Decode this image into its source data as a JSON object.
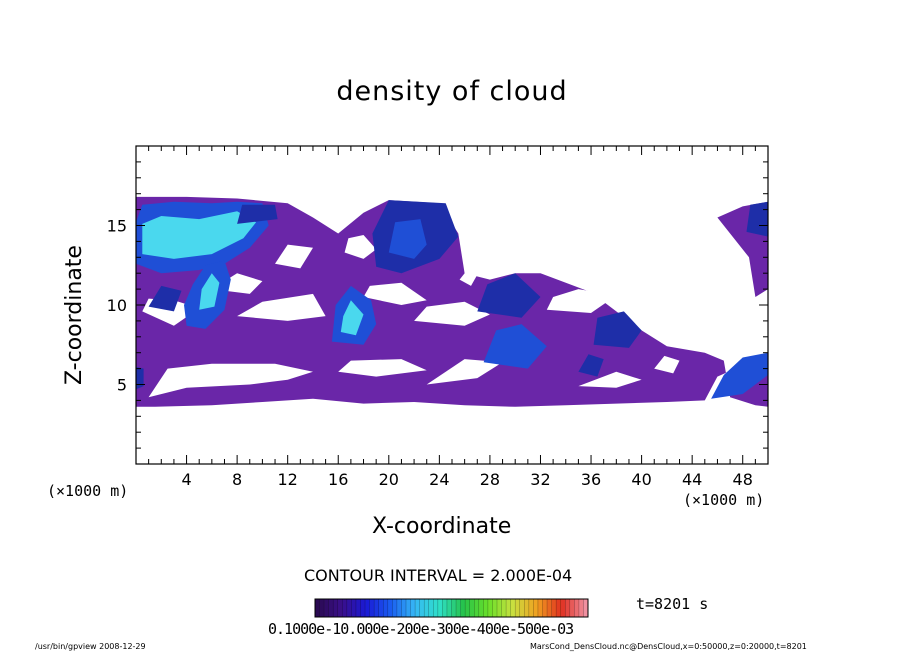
{
  "chart_data": {
    "type": "heatmap",
    "title": "density of cloud",
    "xlabel": "X-coordinate",
    "ylabel": "Z-coordinate",
    "x_unit_left": "(×1000 m)",
    "x_unit_right": "(×1000 m)",
    "xlim": [
      0,
      50
    ],
    "ylim": [
      0,
      20
    ],
    "x_ticks": [
      4,
      8,
      12,
      16,
      20,
      24,
      28,
      32,
      36,
      40,
      44,
      48
    ],
    "y_ticks": [
      5,
      10,
      15
    ],
    "cloud_regions": [
      {
        "level": 1,
        "polygon": [
          [
            0,
            3.6
          ],
          [
            1.5,
            3.6
          ],
          [
            6,
            3.7
          ],
          [
            10,
            3.9
          ],
          [
            14,
            4.1
          ],
          [
            18,
            3.8
          ],
          [
            22,
            3.9
          ],
          [
            26,
            3.7
          ],
          [
            30,
            3.6
          ],
          [
            34,
            3.7
          ],
          [
            38,
            3.8
          ],
          [
            42,
            3.9
          ],
          [
            45,
            4.0
          ],
          [
            46,
            5.5
          ],
          [
            48,
            6.2
          ],
          [
            50,
            6.6
          ],
          [
            50,
            3.6
          ],
          [
            49,
            3.7
          ],
          [
            47,
            4.2
          ],
          [
            46.5,
            6.5
          ],
          [
            45,
            7.0
          ],
          [
            42,
            7.4
          ],
          [
            40,
            8.4
          ],
          [
            38,
            9.6
          ],
          [
            36,
            10.8
          ],
          [
            34,
            11.4
          ],
          [
            32,
            12.0
          ],
          [
            30,
            12.0
          ],
          [
            28,
            11.6
          ],
          [
            26,
            12.0
          ],
          [
            25.5,
            14.5
          ],
          [
            24,
            16.4
          ],
          [
            20,
            16.6
          ],
          [
            18,
            15.8
          ],
          [
            16,
            14.5
          ],
          [
            14,
            15.5
          ],
          [
            12,
            16.4
          ],
          [
            8,
            16.7
          ],
          [
            4,
            16.8
          ],
          [
            0,
            16.8
          ]
        ]
      },
      {
        "level": 1,
        "polygon": [
          [
            46,
            15.5
          ],
          [
            48,
            16.2
          ],
          [
            50,
            16.5
          ],
          [
            50,
            11
          ],
          [
            49,
            10.5
          ],
          [
            48.5,
            13
          ],
          [
            47,
            14.5
          ]
        ]
      }
    ],
    "holes": [
      [
        [
          1,
          4.2
        ],
        [
          4,
          4.8
        ],
        [
          9,
          5.0
        ],
        [
          12,
          5.3
        ],
        [
          14,
          5.8
        ],
        [
          11,
          6.3
        ],
        [
          6,
          6.3
        ],
        [
          2.5,
          6.0
        ]
      ],
      [
        [
          16,
          5.8
        ],
        [
          19,
          5.5
        ],
        [
          23,
          5.9
        ],
        [
          21,
          6.6
        ],
        [
          17,
          6.5
        ]
      ],
      [
        [
          23,
          5.0
        ],
        [
          27,
          5.4
        ],
        [
          29,
          6.4
        ],
        [
          26,
          6.6
        ]
      ],
      [
        [
          35,
          4.9
        ],
        [
          38,
          4.8
        ],
        [
          40,
          5.3
        ],
        [
          38,
          5.8
        ]
      ],
      [
        [
          0.5,
          9.6
        ],
        [
          3,
          8.7
        ],
        [
          5,
          9.8
        ],
        [
          3,
          10.3
        ],
        [
          1,
          10.4
        ]
      ],
      [
        [
          8,
          9.3
        ],
        [
          12,
          9.0
        ],
        [
          15,
          9.3
        ],
        [
          14,
          10.7
        ],
        [
          10,
          10.2
        ]
      ],
      [
        [
          6,
          11.0
        ],
        [
          9,
          10.7
        ],
        [
          10,
          11.5
        ],
        [
          8,
          12.0
        ]
      ],
      [
        [
          11,
          12.6
        ],
        [
          13,
          12.3
        ],
        [
          14,
          13.6
        ],
        [
          12,
          13.8
        ]
      ],
      [
        [
          18,
          10.5
        ],
        [
          21,
          10.0
        ],
        [
          23,
          10.3
        ],
        [
          21,
          11.4
        ],
        [
          18.5,
          11.2
        ]
      ],
      [
        [
          22,
          9.0
        ],
        [
          26,
          8.7
        ],
        [
          28,
          9.4
        ],
        [
          26,
          10.2
        ],
        [
          23,
          9.9
        ]
      ],
      [
        [
          32.5,
          9.7
        ],
        [
          36,
          9.5
        ],
        [
          38,
          10.6
        ],
        [
          35,
          11.0
        ],
        [
          33,
          10.5
        ]
      ],
      [
        [
          16.5,
          13.3
        ],
        [
          18,
          12.9
        ],
        [
          19,
          13.5
        ],
        [
          18,
          14.4
        ],
        [
          16.8,
          14.2
        ]
      ],
      [
        [
          25.6,
          11.6
        ],
        [
          26.5,
          11.2
        ],
        [
          27,
          11.9
        ],
        [
          26.2,
          12.2
        ]
      ],
      [
        [
          41,
          6.0
        ],
        [
          42.5,
          5.7
        ],
        [
          43,
          6.5
        ],
        [
          41.8,
          6.8
        ]
      ]
    ],
    "cores": [
      {
        "level": 4,
        "polygon": [
          [
            0,
            12.6
          ],
          [
            2,
            12.0
          ],
          [
            5,
            12.2
          ],
          [
            7,
            12.6
          ],
          [
            9,
            13.6
          ],
          [
            10.5,
            15.0
          ],
          [
            10,
            16.4
          ],
          [
            8,
            16.5
          ],
          [
            6,
            16.4
          ],
          [
            3,
            16.5
          ],
          [
            0.5,
            16.3
          ],
          [
            0,
            15.2
          ]
        ]
      },
      {
        "level": 5,
        "polygon": [
          [
            0.5,
            13.2
          ],
          [
            3,
            12.9
          ],
          [
            6,
            13.2
          ],
          [
            8.5,
            14.2
          ],
          [
            9.5,
            15.2
          ],
          [
            8,
            15.9
          ],
          [
            5,
            15.4
          ],
          [
            2,
            15.6
          ],
          [
            0.5,
            15.1
          ]
        ]
      },
      {
        "level": 4,
        "polygon": [
          [
            4,
            8.7
          ],
          [
            5.5,
            8.5
          ],
          [
            7,
            9.7
          ],
          [
            7.5,
            11.6
          ],
          [
            7,
            12.8
          ],
          [
            5.5,
            12.5
          ],
          [
            4.5,
            11.3
          ],
          [
            3.8,
            10.0
          ]
        ]
      },
      {
        "level": 5,
        "polygon": [
          [
            5,
            9.7
          ],
          [
            6.2,
            9.9
          ],
          [
            6.6,
            11.4
          ],
          [
            6,
            12.0
          ],
          [
            5.2,
            11.0
          ]
        ]
      },
      {
        "level": 4,
        "polygon": [
          [
            15.5,
            7.7
          ],
          [
            18,
            7.5
          ],
          [
            19,
            8.8
          ],
          [
            18.6,
            10.3
          ],
          [
            17,
            11.2
          ],
          [
            15.8,
            10.0
          ]
        ]
      },
      {
        "level": 5,
        "polygon": [
          [
            16.2,
            8.3
          ],
          [
            17.4,
            8.1
          ],
          [
            18,
            9.4
          ],
          [
            17,
            10.3
          ],
          [
            16.4,
            9.3
          ]
        ]
      },
      {
        "level": 3,
        "polygon": [
          [
            19,
            12.4
          ],
          [
            21,
            12.0
          ],
          [
            24,
            12.9
          ],
          [
            25.5,
            14.3
          ],
          [
            24.5,
            16.4
          ],
          [
            20,
            16.6
          ],
          [
            18.7,
            14.5
          ]
        ]
      },
      {
        "level": 4,
        "polygon": [
          [
            20,
            13.3
          ],
          [
            22,
            12.9
          ],
          [
            23,
            13.8
          ],
          [
            22.5,
            15.4
          ],
          [
            20.5,
            15.2
          ]
        ]
      },
      {
        "level": 3,
        "polygon": [
          [
            27,
            9.6
          ],
          [
            30.5,
            9.2
          ],
          [
            32,
            10.5
          ],
          [
            30,
            12.0
          ],
          [
            27.8,
            11.3
          ]
        ]
      },
      {
        "level": 4,
        "polygon": [
          [
            27.5,
            6.4
          ],
          [
            31,
            6.0
          ],
          [
            32.5,
            7.4
          ],
          [
            30.5,
            8.8
          ],
          [
            28.5,
            8.4
          ]
        ]
      },
      {
        "level": 3,
        "polygon": [
          [
            36.2,
            7.5
          ],
          [
            39,
            7.3
          ],
          [
            40,
            8.4
          ],
          [
            38.6,
            9.6
          ],
          [
            36.5,
            9.2
          ]
        ]
      },
      {
        "level": 3,
        "polygon": [
          [
            35,
            5.8
          ],
          [
            36.5,
            5.5
          ],
          [
            37,
            6.6
          ],
          [
            35.8,
            6.9
          ]
        ]
      },
      {
        "level": 4,
        "polygon": [
          [
            45.5,
            4.1
          ],
          [
            48,
            4.4
          ],
          [
            50,
            5.6
          ],
          [
            50,
            7.0
          ],
          [
            48,
            6.7
          ],
          [
            46.5,
            5.6
          ]
        ]
      },
      {
        "level": 3,
        "polygon": [
          [
            48.3,
            14.6
          ],
          [
            50,
            14.3
          ],
          [
            50,
            16.5
          ],
          [
            48.6,
            16.3
          ]
        ]
      },
      {
        "level": 3,
        "polygon": [
          [
            0,
            4.7
          ],
          [
            0.6,
            4.9
          ],
          [
            0.6,
            6.0
          ],
          [
            0,
            6.1
          ]
        ]
      },
      {
        "level": 3,
        "polygon": [
          [
            1,
            9.9
          ],
          [
            3,
            9.6
          ],
          [
            3.6,
            10.9
          ],
          [
            2,
            11.2
          ]
        ]
      },
      {
        "level": 3,
        "polygon": [
          [
            8,
            15.1
          ],
          [
            11.2,
            15.4
          ],
          [
            11,
            16.3
          ],
          [
            8.4,
            16.3
          ]
        ]
      }
    ],
    "colorbar": {
      "colors": [
        "#2a0a52",
        "#3a0f8a",
        "#1a1ad6",
        "#1a5cf0",
        "#36b8f5",
        "#2fe0c8",
        "#26c24a",
        "#6ae02a",
        "#c8e040",
        "#f0a020",
        "#e03020",
        "#f090a0"
      ],
      "labels": "0.1000e-10.000e-200e-300e-400e-500e-03"
    },
    "contour_interval": "CONTOUR INTERVAL = 2.000E-04",
    "time": "t=8201 s"
  },
  "footer": {
    "left": "/usr/bin/gpview 2008-12-29",
    "right": "MarsCond_DensCloud.nc@DensCloud,x=0:50000,z=0:20000,t=8201"
  },
  "colors": {
    "level1": "#6a26a8",
    "level3": "#1e2ea8",
    "level4": "#1f4fd6",
    "level5": "#4ad8ee"
  }
}
